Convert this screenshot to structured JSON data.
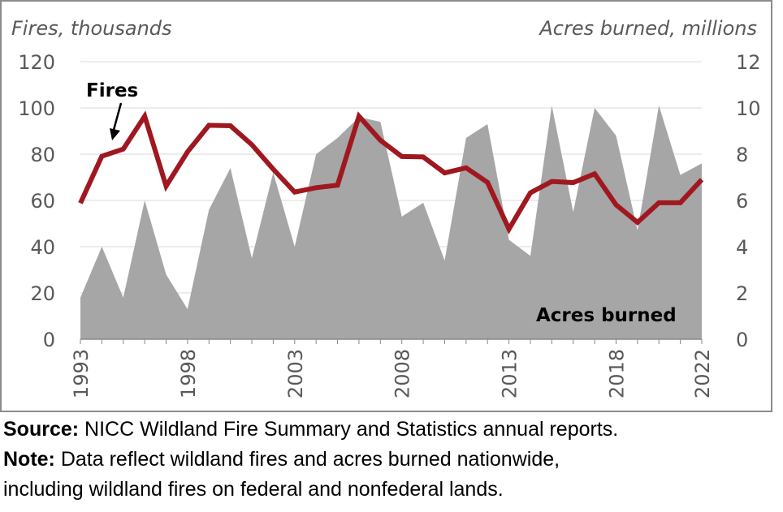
{
  "chart_data": {
    "type": "line+area",
    "title": "",
    "y_left_label": "Fires, thousands",
    "y_right_label": "Acres burned, millions",
    "y_left_range": [
      0,
      120
    ],
    "y_right_range": [
      0,
      12
    ],
    "y_left_ticks": [
      "0",
      "20",
      "40",
      "60",
      "80",
      "100",
      "120"
    ],
    "y_right_ticks": [
      "0",
      "2",
      "4",
      "6",
      "8",
      "10",
      "12"
    ],
    "x_range": [
      1993,
      2022
    ],
    "x_ticks": [
      "1993",
      "1998",
      "2003",
      "2008",
      "2013",
      "2018",
      "2022"
    ],
    "grid": true,
    "series": [
      {
        "name": "Acres burned",
        "axis": "right",
        "kind": "area",
        "color": "#a6a6a6",
        "x": [
          1993,
          1994,
          1995,
          1996,
          1997,
          1998,
          1999,
          2000,
          2001,
          2002,
          2003,
          2004,
          2005,
          2006,
          2007,
          2008,
          2009,
          2010,
          2011,
          2012,
          2013,
          2014,
          2015,
          2016,
          2017,
          2018,
          2019,
          2020,
          2021,
          2022
        ],
        "values": [
          1.8,
          4.0,
          1.8,
          6.0,
          2.8,
          1.3,
          5.6,
          7.4,
          3.5,
          7.2,
          4.0,
          8.0,
          8.7,
          9.6,
          9.4,
          5.3,
          5.9,
          3.4,
          8.7,
          9.3,
          4.3,
          3.6,
          10.1,
          5.5,
          10.0,
          8.8,
          4.7,
          10.1,
          7.1,
          7.6
        ]
      },
      {
        "name": "Fires",
        "axis": "left",
        "kind": "line",
        "color": "#a0181f",
        "x": [
          1993,
          1994,
          1995,
          1996,
          1997,
          1998,
          1999,
          2000,
          2001,
          2002,
          2003,
          2004,
          2005,
          2006,
          2007,
          2008,
          2009,
          2010,
          2011,
          2012,
          2013,
          2014,
          2015,
          2016,
          2017,
          2018,
          2019,
          2020,
          2021,
          2022
        ],
        "values": [
          58.8,
          79.1,
          82.2,
          96.4,
          66.2,
          81.0,
          92.5,
          92.3,
          84.1,
          73.5,
          63.6,
          65.5,
          66.6,
          96.4,
          86.0,
          79.0,
          78.8,
          71.9,
          74.1,
          67.8,
          47.6,
          63.3,
          68.2,
          67.7,
          71.5,
          58.1,
          50.5,
          59.0,
          59.0,
          69.0
        ]
      }
    ],
    "annotations": {
      "fires_label": "Fires",
      "acres_label": "Acres burned"
    }
  },
  "notes": {
    "source_label": "Source:",
    "source_text": "NICC Wildland Fire Summary and Statistics annual reports.",
    "note_label": "Note:",
    "note_line1": "Data reflect wildland fires and acres burned nationwide,",
    "note_line2": "including wildland fires on federal and nonfederal lands."
  }
}
